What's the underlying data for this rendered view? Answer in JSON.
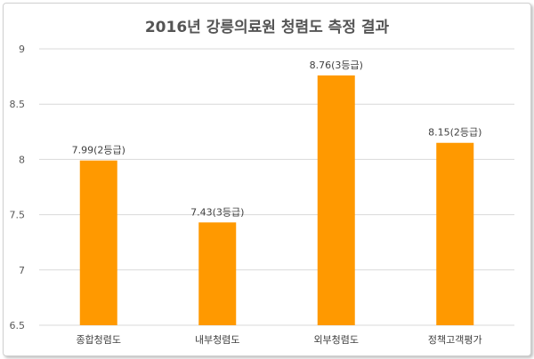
{
  "chart_data": {
    "type": "bar",
    "title": "2016년 강릉의료원 청렴도 측정 결과",
    "categories": [
      "종합청렴도",
      "내부청렴도",
      "외부청렴도",
      "정책고객평가"
    ],
    "values": [
      7.99,
      7.43,
      8.76,
      8.15
    ],
    "data_labels": [
      "7.99(2등급)",
      "7.43(3등급)",
      "8.76(3등급)",
      "8.15(2등급)"
    ],
    "ylim": [
      6.5,
      9
    ],
    "yticks": [
      6.5,
      7,
      7.5,
      8,
      8.5,
      9
    ],
    "ytick_labels": [
      "6.5",
      "7",
      "7.5",
      "8",
      "8.5",
      "9"
    ],
    "xlabel": "",
    "ylabel": "",
    "grid": true,
    "bar_color": "#FF9900",
    "grid_color": "#D9D9D9"
  }
}
